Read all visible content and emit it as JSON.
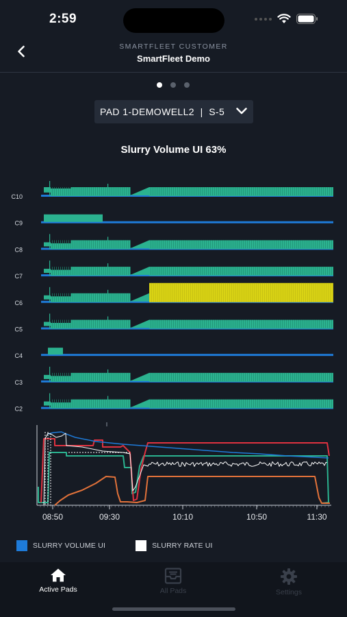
{
  "status_bar": {
    "time": "2:59"
  },
  "header": {
    "subtitle": "SMARTFLEET CUSTOMER",
    "title": "SmartFleet Demo"
  },
  "pager": {
    "count": 3,
    "active": 0
  },
  "selector": {
    "value": "PAD 1-DEMOWELL2  |  S-5"
  },
  "chart_title": "Slurry Volume UI 63%",
  "chart_data": [
    {
      "type": "area",
      "series": [
        {
          "name": "C10",
          "color": "#2bb28f",
          "highlight": false
        },
        {
          "name": "C9",
          "color": "#2bb28f",
          "highlight": false
        },
        {
          "name": "C8",
          "color": "#2bb28f",
          "highlight": false
        },
        {
          "name": "C7",
          "color": "#2bb28f",
          "highlight": false
        },
        {
          "name": "C6",
          "color": "#2bb28f",
          "highlight": true,
          "highlight_color": "#d9d314"
        },
        {
          "name": "C5",
          "color": "#2bb28f",
          "highlight": false
        },
        {
          "name": "C4",
          "color": "#2bb28f",
          "highlight": false
        },
        {
          "name": "C3",
          "color": "#2bb28f",
          "highlight": false
        },
        {
          "name": "C2",
          "color": "#2bb28f",
          "highlight": false
        }
      ]
    },
    {
      "type": "line",
      "x_ticks": [
        "08:50",
        "09:30",
        "10:10",
        "10:50",
        "11:30"
      ],
      "legend": [
        {
          "label": "SLURRY VOLUME UI",
          "color": "#1e7bd9"
        },
        {
          "label": "SLURRY RATE UI",
          "color": "#ffffff"
        }
      ]
    }
  ],
  "tabs": [
    {
      "label": "Active Pads",
      "icon": "home-icon",
      "active": true
    },
    {
      "label": "All Pads",
      "icon": "inbox-tray-icon",
      "active": false
    },
    {
      "label": "Settings",
      "icon": "gear-icon",
      "active": false
    }
  ]
}
